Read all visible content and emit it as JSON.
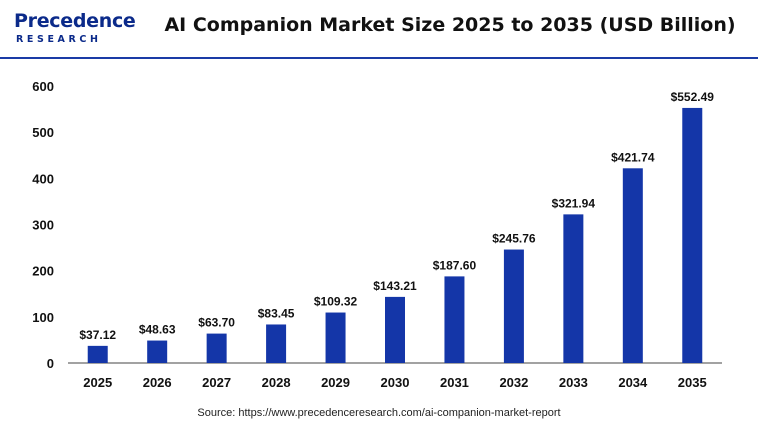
{
  "brand": {
    "name": "Precedence",
    "tagline": "RESEARCH"
  },
  "colors": {
    "bar": "#1436a8",
    "brand": "#0b2a8a",
    "rule": "#1a3ba6"
  },
  "source": "Source: https://www.precedenceresearch.com/ai-companion-market-report",
  "chart_data": {
    "type": "bar",
    "title": "AI Companion Market Size 2025 to 2035 (USD Billion)",
    "xlabel": "",
    "ylabel": "",
    "categories": [
      "2025",
      "2026",
      "2027",
      "2028",
      "2029",
      "2030",
      "2031",
      "2032",
      "2033",
      "2034",
      "2035"
    ],
    "values": [
      37.12,
      48.63,
      63.7,
      83.45,
      109.32,
      143.21,
      187.6,
      245.76,
      321.94,
      421.74,
      552.49
    ],
    "value_labels": [
      "$37.12",
      "$48.63",
      "$63.70",
      "$83.45",
      "$109.32",
      "$143.21",
      "$187.60",
      "$245.76",
      "$321.94",
      "$421.74",
      "$552.49"
    ],
    "ylim": [
      0,
      600
    ],
    "yticks": [
      "0",
      "100",
      "200",
      "300",
      "400",
      "500",
      "600"
    ],
    "grid": false,
    "legend": "none"
  }
}
